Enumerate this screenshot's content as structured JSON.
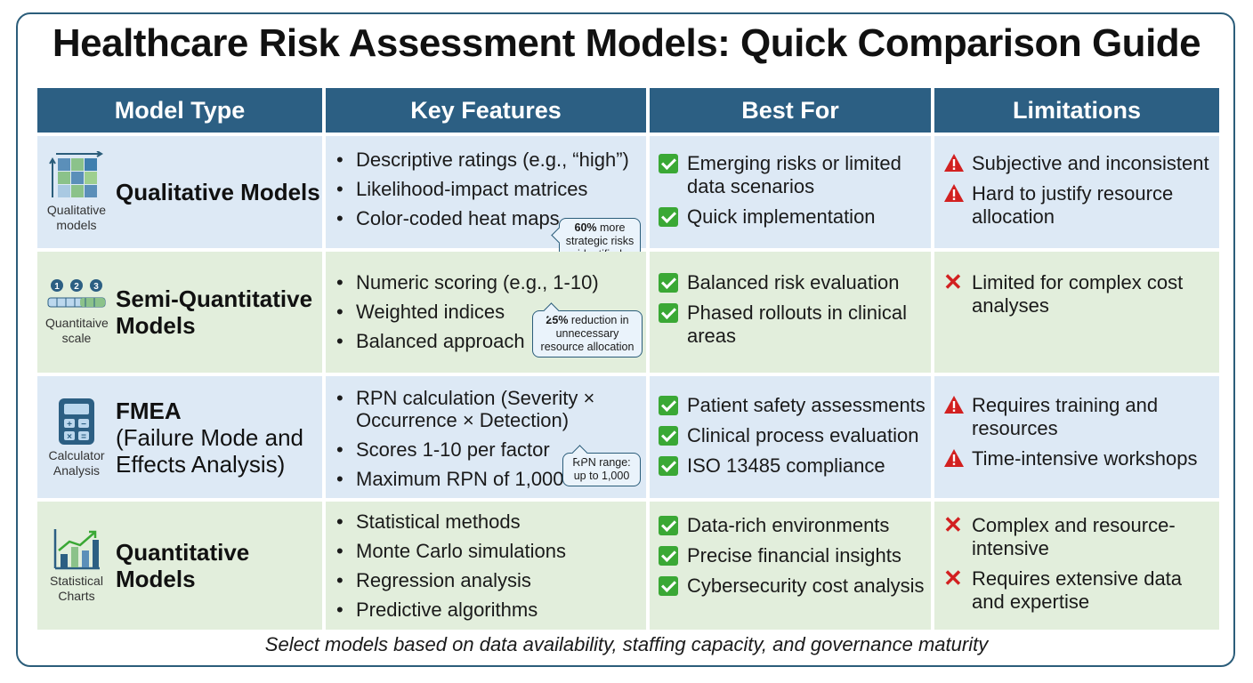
{
  "title": "Healthcare Risk Assessment Models: Quick Comparison Guide",
  "headers": [
    "Model Type",
    "Key Features",
    "Best For",
    "Limitations"
  ],
  "colors": {
    "header_bg": "#2c5f83",
    "row_blue": "#dde9f5",
    "row_green": "#e2eedc",
    "check": "#3aa835",
    "warn": "#d22020"
  },
  "rows": [
    {
      "icon": "grid-matrix-icon",
      "icon_caption": "Qualitative models",
      "name": "Qualitative Models",
      "name_sub": "",
      "features": [
        "Descriptive ratings (e.g., “high”)",
        "Likelihood-impact matrices",
        "Color-coded heat maps"
      ],
      "callout_bold": "60%",
      "callout_text": " more strategic risks identified",
      "best_for": [
        "Emerging risks or limited data scenarios",
        "Quick implementation"
      ],
      "limitations": [
        "Subjective and inconsistent",
        "Hard to justify resource allocation"
      ],
      "limitation_icon": "warning-icon"
    },
    {
      "icon": "scale-icon",
      "icon_caption": "Quantitaive scale",
      "name": "Semi-Quantitative Models",
      "name_sub": "",
      "features": [
        "Numeric scoring (e.g., 1-10)",
        "Weighted indices",
        "Balanced approach"
      ],
      "callout_bold": "25%",
      "callout_text": " reduction in unnecessary resource allocation",
      "best_for": [
        "Balanced risk evaluation",
        "Phased rollouts in clinical areas"
      ],
      "limitations": [
        "Limited for complex cost analyses"
      ],
      "limitation_icon": "cross-icon"
    },
    {
      "icon": "calculator-icon",
      "icon_caption": "Calculator Analysis",
      "name": "FMEA",
      "name_sub": "(Failure Mode and Effects Analysis)",
      "features": [
        "RPN calculation (Severity × Occurrence × Detection)",
        "Scores 1-10 per factor",
        "Maximum RPN of 1,000"
      ],
      "callout_bold": "",
      "callout_text": "RPN range: up to 1,000",
      "best_for": [
        "Patient safety assessments",
        "Clinical process evaluation",
        "ISO 13485 compliance"
      ],
      "limitations": [
        "Requires training and resources",
        "Time-intensive workshops"
      ],
      "limitation_icon": "warning-icon"
    },
    {
      "icon": "bar-chart-icon",
      "icon_caption": "Statistical Charts",
      "name": "Quantitative Models",
      "name_sub": "",
      "features": [
        "Statistical methods",
        "Monte Carlo simulations",
        "Regression analysis",
        "Predictive algorithms"
      ],
      "best_for": [
        "Data-rich environments",
        "Precise financial insights",
        "Cybersecurity cost analysis"
      ],
      "limitations": [
        "Complex and resource-intensive",
        "Requires extensive data and expertise"
      ],
      "limitation_icon": "cross-icon"
    }
  ],
  "footer": "Select models based on data availability, staffing capacity, and governance maturity"
}
